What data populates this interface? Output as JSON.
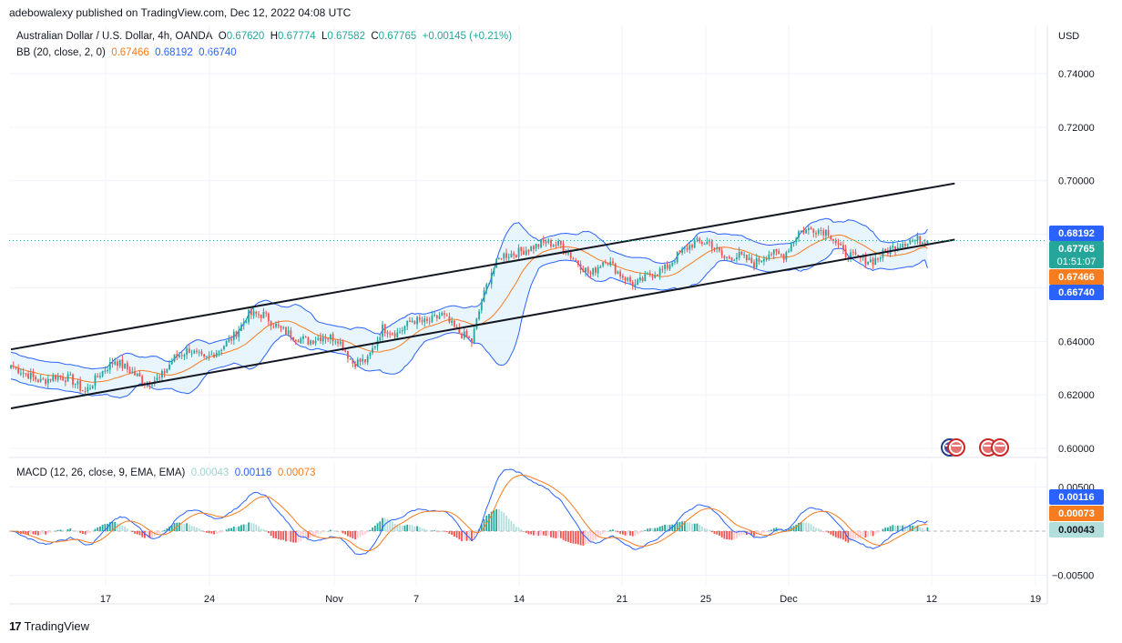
{
  "header": {
    "publisher": "adebowalexy published on TradingView.com, Dec 12, 2022 04:08 UTC"
  },
  "legend": {
    "symbol": "Australian Dollar / U.S. Dollar, 4h, OANDA",
    "o_label": "O",
    "o": "0.67620",
    "h_label": "H",
    "h": "0.67774",
    "l_label": "L",
    "l": "0.67582",
    "c_label": "C",
    "c": "0.67765",
    "change": "+0.00145 (+0.21%)",
    "bb_label": "BB (20, close, 2, 0)",
    "bb_basis": "0.67466",
    "bb_upper": "0.68192",
    "bb_lower": "0.66740",
    "macd_label": "MACD (12, 26, close, 9, EMA, EMA)",
    "macd_hist": "0.00043",
    "macd_line": "0.00116",
    "macd_signal": "0.00073"
  },
  "axis": {
    "currency": "USD",
    "price_ticks": [
      "0.74000",
      "0.72000",
      "0.70000",
      "0.64000",
      "0.62000",
      "0.60000"
    ],
    "macd_ticks": [
      "0.00500",
      "−0.00500"
    ],
    "time_ticks": [
      "17",
      "24",
      "Nov",
      "7",
      "14",
      "21",
      "25",
      "Dec",
      "12",
      "19"
    ]
  },
  "price_tags": {
    "upper": "0.68192",
    "last": "0.67765",
    "countdown": "01:51:07",
    "basis": "0.67466",
    "lower": "0.66740",
    "macd_line": "0.00116",
    "macd_signal": "0.00073",
    "macd_hist": "0.00043"
  },
  "colors": {
    "up": "#26a69a",
    "down": "#ef5350",
    "band": "#2962ff",
    "basis": "#f57c1f",
    "band_fill": "#e3f2fd",
    "hist_up_strong": "#26a69a",
    "hist_up_weak": "#b2dfdb",
    "hist_down_strong": "#ef5350",
    "hist_down_weak": "#ffcdd2"
  },
  "footer": {
    "brand": "TradingView"
  },
  "chart_data": [
    {
      "type": "candlestick",
      "instrument": "Australian Dollar / U.S. Dollar, 4h, OANDA",
      "x_ticks": [
        "17",
        "24",
        "Nov",
        "7",
        "14",
        "21",
        "25",
        "Dec",
        "12",
        "19"
      ],
      "ylim": [
        0.598,
        0.758
      ],
      "close_anchors": [
        [
          0,
          0.631
        ],
        [
          6,
          0.628
        ],
        [
          12,
          0.625
        ],
        [
          18,
          0.627
        ],
        [
          24,
          0.626
        ],
        [
          30,
          0.621
        ],
        [
          36,
          0.628
        ],
        [
          42,
          0.633
        ],
        [
          48,
          0.629
        ],
        [
          54,
          0.625
        ],
        [
          60,
          0.626
        ],
        [
          66,
          0.634
        ],
        [
          72,
          0.637
        ],
        [
          78,
          0.633
        ],
        [
          84,
          0.637
        ],
        [
          90,
          0.642
        ],
        [
          96,
          0.65
        ],
        [
          102,
          0.65
        ],
        [
          108,
          0.645
        ],
        [
          114,
          0.642
        ],
        [
          120,
          0.64
        ],
        [
          126,
          0.642
        ],
        [
          132,
          0.641
        ],
        [
          138,
          0.632
        ],
        [
          144,
          0.633
        ],
        [
          150,
          0.645
        ],
        [
          156,
          0.643
        ],
        [
          162,
          0.648
        ],
        [
          168,
          0.647
        ],
        [
          174,
          0.65
        ],
        [
          180,
          0.644
        ],
        [
          186,
          0.64
        ],
        [
          190,
          0.655
        ],
        [
          194,
          0.666
        ],
        [
          198,
          0.672
        ],
        [
          204,
          0.673
        ],
        [
          210,
          0.675
        ],
        [
          216,
          0.677
        ],
        [
          222,
          0.676
        ],
        [
          228,
          0.67
        ],
        [
          234,
          0.665
        ],
        [
          240,
          0.671
        ],
        [
          246,
          0.665
        ],
        [
          252,
          0.661
        ],
        [
          258,
          0.665
        ],
        [
          264,
          0.667
        ],
        [
          270,
          0.673
        ],
        [
          276,
          0.677
        ],
        [
          282,
          0.677
        ],
        [
          288,
          0.671
        ],
        [
          294,
          0.672
        ],
        [
          300,
          0.669
        ],
        [
          306,
          0.673
        ],
        [
          312,
          0.672
        ],
        [
          318,
          0.681
        ],
        [
          324,
          0.682
        ],
        [
          330,
          0.681
        ],
        [
          336,
          0.673
        ],
        [
          342,
          0.671
        ],
        [
          348,
          0.67
        ],
        [
          354,
          0.674
        ],
        [
          360,
          0.677
        ],
        [
          366,
          0.678
        ],
        [
          370,
          0.677
        ]
      ],
      "bollinger": {
        "period": 20,
        "stddev": 2,
        "basis": 0.67466,
        "upper": 0.68192,
        "lower": 0.6674
      },
      "channel": [
        {
          "name": "upper",
          "from": [
            0,
            0.637
          ],
          "to": [
            381,
            0.699
          ]
        },
        {
          "name": "lower",
          "from": [
            0,
            0.615
          ],
          "to": [
            381,
            0.678
          ]
        }
      ],
      "last": {
        "o": 0.6762,
        "h": 0.67774,
        "l": 0.67582,
        "c": 0.67765,
        "change": 0.00145,
        "change_pct": 0.21
      }
    },
    {
      "type": "macd",
      "params": [
        12,
        26,
        9
      ],
      "ylim": [
        -0.0075,
        0.0075
      ],
      "ticks": [
        0.005,
        -0.005
      ],
      "last": {
        "macd": 0.00116,
        "signal": 0.00073,
        "hist": 0.00043
      }
    }
  ]
}
